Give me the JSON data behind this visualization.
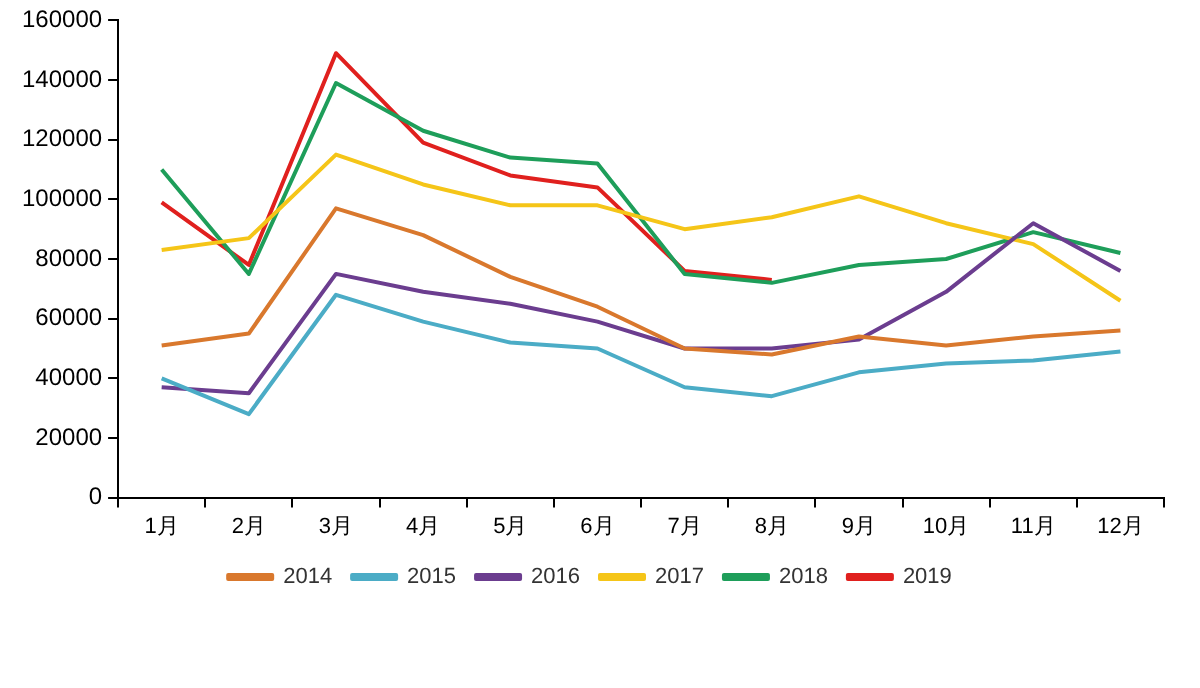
{
  "chart_data": {
    "type": "line",
    "categories": [
      "1月",
      "2月",
      "3月",
      "4月",
      "5月",
      "6月",
      "7月",
      "8月",
      "9月",
      "10月",
      "11月",
      "12月"
    ],
    "ylim": [
      0,
      160000
    ],
    "yticks": [
      0,
      20000,
      40000,
      60000,
      80000,
      100000,
      120000,
      140000,
      160000
    ],
    "grid": false,
    "legend": "bottom",
    "marker": "none",
    "line_style": "solid",
    "series": [
      {
        "name": "2014",
        "color": "#d9782d",
        "values": [
          51000,
          55000,
          97000,
          88000,
          74000,
          64000,
          50000,
          48000,
          54000,
          51000,
          54000,
          56000
        ]
      },
      {
        "name": "2015",
        "color": "#4bacc6",
        "values": [
          40000,
          28000,
          68000,
          59000,
          52000,
          50000,
          37000,
          34000,
          42000,
          45000,
          46000,
          49000
        ]
      },
      {
        "name": "2016",
        "color": "#6b3d8f",
        "values": [
          37000,
          35000,
          75000,
          69000,
          65000,
          59000,
          50000,
          50000,
          53000,
          69000,
          92000,
          76000
        ]
      },
      {
        "name": "2017",
        "color": "#f5c518",
        "values": [
          83000,
          87000,
          115000,
          105000,
          98000,
          98000,
          90000,
          94000,
          101000,
          92000,
          85000,
          66000
        ]
      },
      {
        "name": "2018",
        "color": "#1e9e5a",
        "values": [
          110000,
          75000,
          139000,
          123000,
          114000,
          112000,
          75000,
          72000,
          78000,
          80000,
          89000,
          82000
        ]
      },
      {
        "name": "2019",
        "color": "#e0201e",
        "values": [
          99000,
          78000,
          149000,
          119000,
          108000,
          104000,
          76000,
          73000,
          null,
          null,
          null,
          null
        ]
      }
    ]
  }
}
